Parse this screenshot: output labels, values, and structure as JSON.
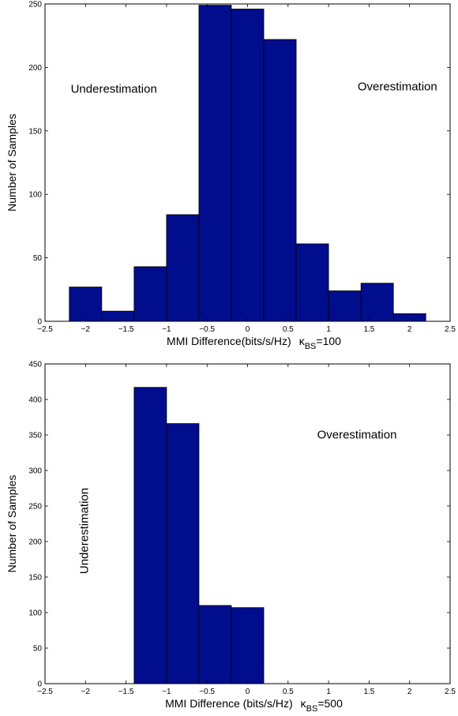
{
  "chart_data": [
    {
      "type": "bar",
      "ylabel": "Number of Samples",
      "xlabel_main": "MMI Difference(bits/s/Hz)",
      "kappa_symbol": "κ",
      "kappa_sub": "BS",
      "kappa_value": "=100",
      "xlim": [
        -2.5,
        2.5
      ],
      "ylim": [
        0,
        250
      ],
      "xticks": [
        -2.5,
        -2,
        -1.5,
        -1,
        -0.5,
        0,
        0.5,
        1,
        1.5,
        2,
        2.5
      ],
      "xtick_labels": [
        "−2.5",
        "−2",
        "−1.5",
        "−1",
        "−0.5",
        "0",
        "0.5",
        "1",
        "1.5",
        "2",
        "2.5"
      ],
      "yticks": [
        0,
        50,
        100,
        150,
        200,
        250
      ],
      "ytick_labels": [
        "0",
        "50",
        "100",
        "150",
        "200",
        "250"
      ],
      "bin_edges": [
        -2.2,
        -1.8,
        -1.4,
        -1.0,
        -0.6,
        -0.2,
        0.2,
        0.6,
        1.0,
        1.4,
        1.8,
        2.2
      ],
      "values": [
        27,
        8,
        43,
        84,
        249,
        246,
        222,
        61,
        24,
        30,
        6
      ],
      "bar_color": "#000d8c",
      "annotations": [
        {
          "text": "Underestimation",
          "x": -1.65,
          "y": 180,
          "rotate": 0
        },
        {
          "text": "Overestimation",
          "x": 1.85,
          "y": 182,
          "rotate": 0
        }
      ]
    },
    {
      "type": "bar",
      "ylabel": "Number of Samples",
      "xlabel_main": "MMI Difference (bits/s/Hz)",
      "kappa_symbol": "κ",
      "kappa_sub": "BS",
      "kappa_value": "=500",
      "xlim": [
        -2.5,
        2.5
      ],
      "ylim": [
        0,
        450
      ],
      "xticks": [
        -2.5,
        -2,
        -1.5,
        -1,
        -0.5,
        0,
        0.5,
        1,
        1.5,
        2,
        2.5
      ],
      "xtick_labels": [
        "−2.5",
        "−2",
        "−1.5",
        "−1",
        "−0.5",
        "0",
        "0.5",
        "1",
        "1.5",
        "2",
        "2.5"
      ],
      "yticks": [
        0,
        50,
        100,
        150,
        200,
        250,
        300,
        350,
        400,
        450
      ],
      "ytick_labels": [
        "0",
        "50",
        "100",
        "150",
        "200",
        "250",
        "300",
        "350",
        "400",
        "450"
      ],
      "bin_edges": [
        -1.4,
        -1.0,
        -0.6,
        -0.2,
        0.2
      ],
      "values": [
        417,
        366,
        110,
        107
      ],
      "bar_color": "#000d8c",
      "annotations": [
        {
          "text": "Underestimation",
          "x": -1.97,
          "y": 215,
          "rotate": -90
        },
        {
          "text": "Overestimation",
          "x": 1.35,
          "y": 345,
          "rotate": 0
        }
      ]
    }
  ]
}
